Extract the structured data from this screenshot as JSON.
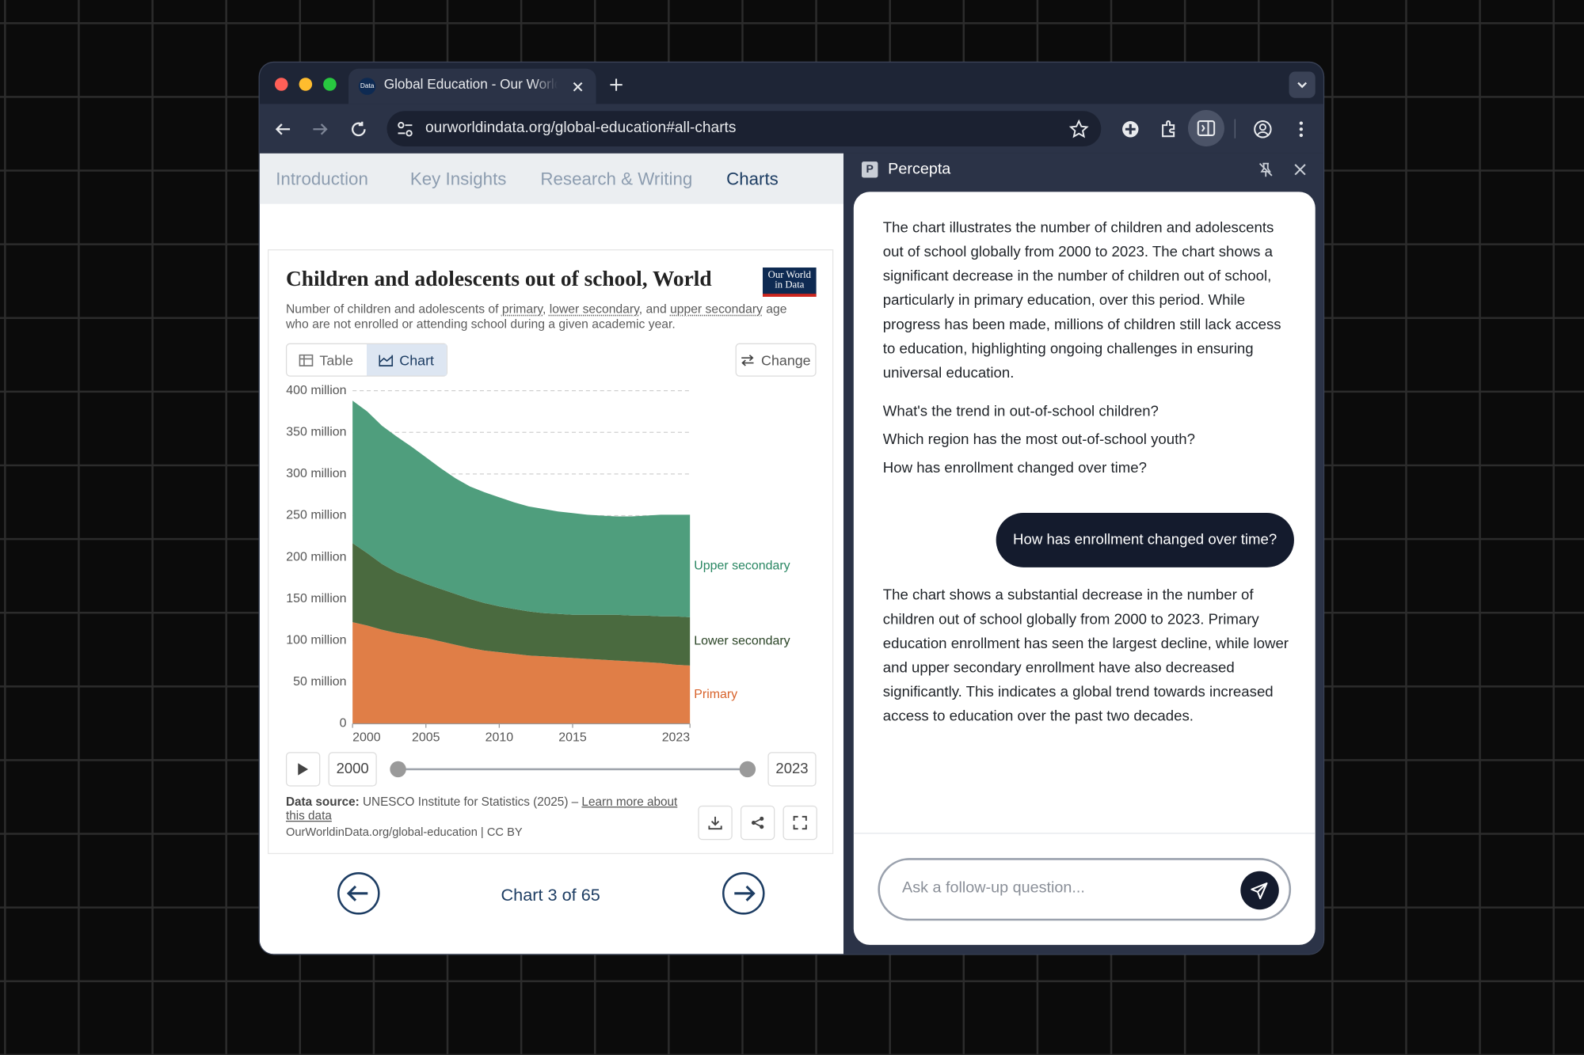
{
  "browser": {
    "tab_favicon": "Data",
    "tab_title": "Global Education - Our World",
    "url": "ourworldindata.org/global-education#all-charts"
  },
  "nav": {
    "tabs": [
      "Introduction",
      "Key Insights",
      "Research & Writing",
      "Charts"
    ],
    "active": 3
  },
  "chart_card": {
    "logo": [
      "Our World",
      "in Data"
    ],
    "view_tabs": [
      "Table",
      "Chart"
    ],
    "active_view": 1,
    "change": "Change",
    "source_label": "Data source:",
    "source": "UNESCO Institute for Statistics (2025) – ",
    "learn_more": "Learn more about this data",
    "credit": "OurWorldinData.org/global-education | CC BY"
  },
  "chart_data": {
    "type": "stacked-area",
    "title": "Children and adolescents out of school, World",
    "subtitle": [
      "Number of children and adolescents of ",
      "primary",
      ", ",
      "lower secondary",
      ", and ",
      "upper secondary",
      " age who are not enrolled or attending school during a given academic year."
    ],
    "x": [
      2000,
      2001,
      2002,
      2003,
      2004,
      2005,
      2006,
      2007,
      2008,
      2009,
      2010,
      2011,
      2012,
      2013,
      2014,
      2015,
      2016,
      2017,
      2018,
      2019,
      2020,
      2021,
      2022,
      2023
    ],
    "xlim": [
      2000,
      2023
    ],
    "xticks": [
      2000,
      2005,
      2010,
      2015,
      2023
    ],
    "ylim": [
      0,
      400
    ],
    "yticks": [
      0,
      {
        "value": 50,
        "label": "50 million"
      },
      {
        "value": 100,
        "label": "100 million"
      },
      {
        "value": 150,
        "label": "150 million"
      },
      {
        "value": 200,
        "label": "200 million"
      },
      {
        "value": 250,
        "label": "250 million"
      },
      {
        "value": 300,
        "label": "300 million"
      },
      {
        "value": 350,
        "label": "350 million"
      },
      {
        "value": 400,
        "label": "400 million"
      }
    ],
    "grid": true,
    "series": [
      {
        "name": "Primary",
        "color": "#e07e47",
        "label_color": "#d8622a",
        "values": [
          122,
          118,
          113,
          109,
          106,
          103,
          99,
          95,
          91,
          88,
          86,
          84,
          82,
          81,
          80,
          79,
          78,
          77,
          76,
          75,
          74,
          73,
          71,
          70
        ]
      },
      {
        "name": "Lower secondary",
        "color": "#4a6a3f",
        "label_color": "#2b4527",
        "values": [
          95,
          87,
          79,
          73,
          69,
          65,
          63,
          61,
          59,
          57,
          55,
          54,
          53,
          52,
          52,
          52,
          53,
          54,
          55,
          55,
          56,
          56,
          58,
          58
        ]
      },
      {
        "name": "Upper secondary",
        "color": "#4f9e7d",
        "label_color": "#2a8763",
        "values": [
          171,
          170,
          166,
          163,
          158,
          152,
          145,
          139,
          135,
          133,
          131,
          128,
          126,
          125,
          123,
          122,
          120,
          119,
          118,
          119,
          120,
          122,
          122,
          123
        ]
      }
    ]
  },
  "pager": {
    "label": "Chart 3 of 65"
  },
  "assistant": {
    "icon": "P",
    "name": "Percepta",
    "intro": "The chart illustrates the number of children and adolescents out of school globally from 2000 to 2023. The chart shows a significant decrease in the number of children out of school, particularly in primary education, over this period. While progress has been made, millions of children still lack access to education, highlighting ongoing challenges in ensuring universal education.",
    "suggestions": [
      "What's the trend in out-of-school children?",
      "Which region has the most out-of-school youth?",
      "How has enrollment changed over time?"
    ],
    "user_message": "How has enrollment changed over time?",
    "reply": "The chart shows a substantial decrease in the number of children out of school globally from 2000 to 2023. Primary education enrollment has seen the largest decline, while lower and upper secondary enrollment have also decreased significantly. This indicates a global trend towards increased access to education over the past two decades.",
    "placeholder": "Ask a follow-up question..."
  }
}
